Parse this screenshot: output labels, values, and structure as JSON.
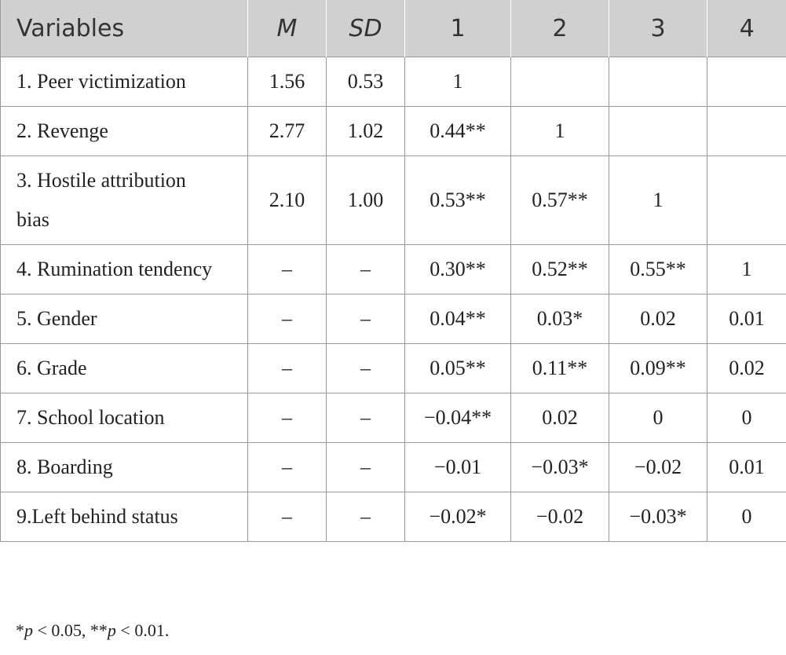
{
  "table": {
    "headers": [
      "Variables",
      "M",
      "SD",
      "1",
      "2",
      "3",
      "4"
    ],
    "rows": [
      [
        "1. Peer victimization",
        "1.56",
        "0.53",
        "1"
      ],
      [
        "2. Revenge",
        "2.77",
        "1.02",
        "0.44**",
        "1"
      ],
      [
        "3. Hostile attribution bias",
        "2.10",
        "1.00",
        "0.53**",
        "0.57**",
        "1"
      ],
      [
        "4. Rumination tendency",
        "–",
        "–",
        "0.30**",
        "0.52**",
        "0.55**",
        "1"
      ],
      [
        "5. Gender",
        "–",
        "–",
        "0.04**",
        "0.03*",
        "0.02",
        "0.01"
      ],
      [
        "6. Grade",
        "–",
        "–",
        "0.05**",
        "0.11**",
        "0.09**",
        "0.02"
      ],
      [
        "7. School location",
        "–",
        "–",
        "−0.04**",
        "0.02",
        "0",
        "0"
      ],
      [
        "8. Boarding",
        "–",
        "–",
        "−0.01",
        "−0.03*",
        "−0.02",
        "0.01"
      ],
      [
        "9.Left behind status",
        "–",
        "–",
        "−0.02*",
        "−0.02",
        "−0.03*",
        "0"
      ]
    ]
  },
  "footnote": [
    "*",
    "p",
    " < 0.05, **",
    "p",
    " < 0.01."
  ]
}
